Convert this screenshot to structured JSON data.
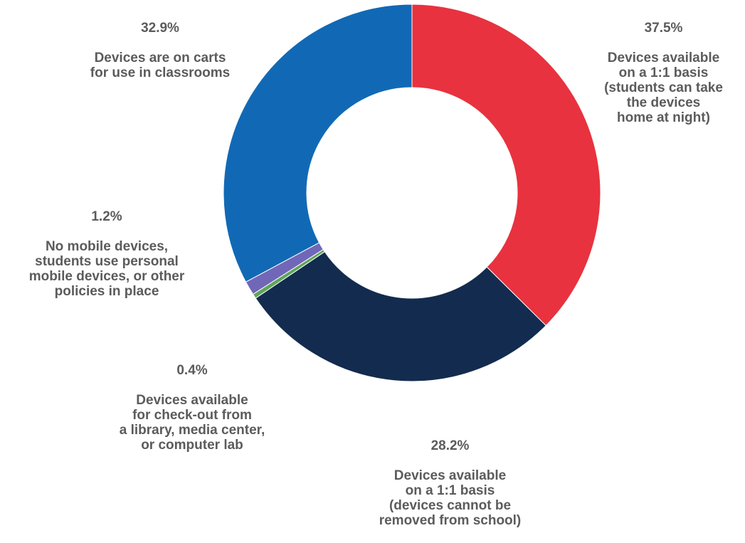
{
  "chart_data": {
    "type": "pie",
    "slices": [
      {
        "value": 37.5,
        "percent_label": "37.5%",
        "label": "Devices available\non a 1:1 basis\n(students can take\nthe devices\nhome at night)",
        "color": "#e8323f"
      },
      {
        "value": 28.2,
        "percent_label": "28.2%",
        "label": "Devices available\non a 1:1 basis\n(devices cannot be\nremoved from school)",
        "color": "#132b4e"
      },
      {
        "value": 0.4,
        "percent_label": "0.4%",
        "label": "Devices available\nfor check-out from\na library, media center,\nor computer lab",
        "color": "#5fa55a"
      },
      {
        "value": 1.2,
        "percent_label": "1.2%",
        "label": "No mobile devices,\nstudents use personal\nmobile devices, or other\npolicies in place",
        "color": "#7167b8"
      },
      {
        "value": 32.9,
        "percent_label": "32.9%",
        "label": "Devices are on carts\nfor use in classrooms",
        "color": "#1169b5"
      }
    ],
    "hole": true,
    "legend": "none"
  }
}
